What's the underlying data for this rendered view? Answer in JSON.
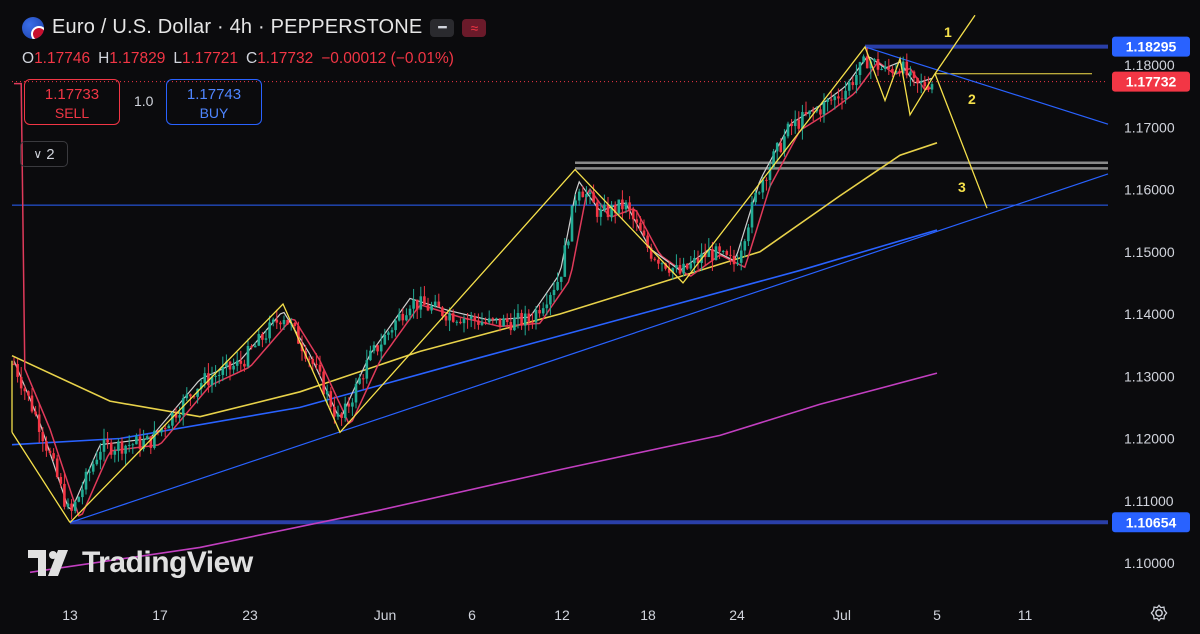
{
  "header": {
    "title": "Euro / U.S. Dollar · 4h · PEPPERSTONE",
    "minus_icon": "minus-icon",
    "wave_icon": "wave-icon",
    "ohlc": {
      "open_label": "O",
      "open": "1.17746",
      "high_label": "H",
      "high": "1.17829",
      "low_label": "L",
      "low": "1.17721",
      "close_label": "C",
      "close": "1.17732",
      "change": "−0.00012 (−0.01%)"
    }
  },
  "trade_panel": {
    "sell_price": "1.17733",
    "sell_label": "SELL",
    "quantity": "1.0",
    "buy_price": "1.17743",
    "buy_label": "BUY"
  },
  "indicator_toggle": {
    "label": "2"
  },
  "watermark": "TradingView",
  "colors": {
    "background": "#0b0b0d",
    "up": "#22ab94",
    "down": "#f23645",
    "pattern": "#f5e04b",
    "trend": "#2962ff",
    "ma_purple": "#c23fc0",
    "ma_yellow": "#e8d24a",
    "ma_red": "#e03a5a",
    "ma_white": "#cfcfcf"
  },
  "chart_data": {
    "type": "candlestick",
    "symbol": "EURUSD",
    "timeframe": "4h",
    "ylim": [
      1.097,
      1.188
    ],
    "y_ticks": [
      "1.18000",
      "1.17000",
      "1.16000",
      "1.15000",
      "1.14000",
      "1.13000",
      "1.12000",
      "1.11000",
      "1.10000"
    ],
    "x_ticks": [
      "13",
      "17",
      "23",
      "Jun",
      "6",
      "12",
      "18",
      "24",
      "Jul",
      "5",
      "11"
    ],
    "price_labels": [
      {
        "value": "1.18295",
        "color": "#2962ff"
      },
      {
        "value": "1.17732",
        "color": "#f23645"
      },
      {
        "value": "1.10654",
        "color": "#2962ff"
      }
    ],
    "horizontal_levels": [
      1.18295,
      1.10654,
      1.1643,
      1.1634,
      1.1575
    ],
    "wave_labels": [
      "1",
      "2",
      "3"
    ],
    "zigzag_pattern": [
      {
        "date": "May 13",
        "price": 1.1065
      },
      {
        "date": "May 20",
        "price": 1.1416
      },
      {
        "date": "May 29",
        "price": 1.121
      },
      {
        "date": "Jun 12",
        "price": 1.1632
      },
      {
        "date": "Jun 20",
        "price": 1.145
      },
      {
        "date": "Jul 1",
        "price": 1.1829
      },
      {
        "date": "Jul 3",
        "price": 1.1743
      },
      {
        "date": "Jul 3",
        "price": 1.181
      },
      {
        "date": "Jul 4",
        "price": 1.172
      },
      {
        "date": "Jul 5",
        "price": 1.1786
      }
    ],
    "projection": [
      {
        "label": "1",
        "from_price": 1.1786,
        "to_price": 1.188
      },
      {
        "label": "2",
        "price": 1.1786
      },
      {
        "label": "3",
        "to_price": 1.157
      }
    ],
    "moving_averages": [
      {
        "color": "#c23fc0",
        "values": [
          1.0975,
          1.101,
          1.107,
          1.115,
          1.12,
          1.1255,
          1.1305
        ]
      },
      {
        "color": "#2962ff",
        "values": [
          1.119,
          1.122,
          1.126,
          1.133,
          1.14,
          1.147,
          1.1535
        ]
      },
      {
        "color": "#e8d24a",
        "values": [
          1.1333,
          1.126,
          1.14,
          1.144,
          1.1475,
          1.16,
          1.1675
        ]
      }
    ],
    "candles_summary": {
      "start_price": 1.133,
      "low": 1.10654,
      "high": 1.18295,
      "last": 1.17732
    }
  }
}
